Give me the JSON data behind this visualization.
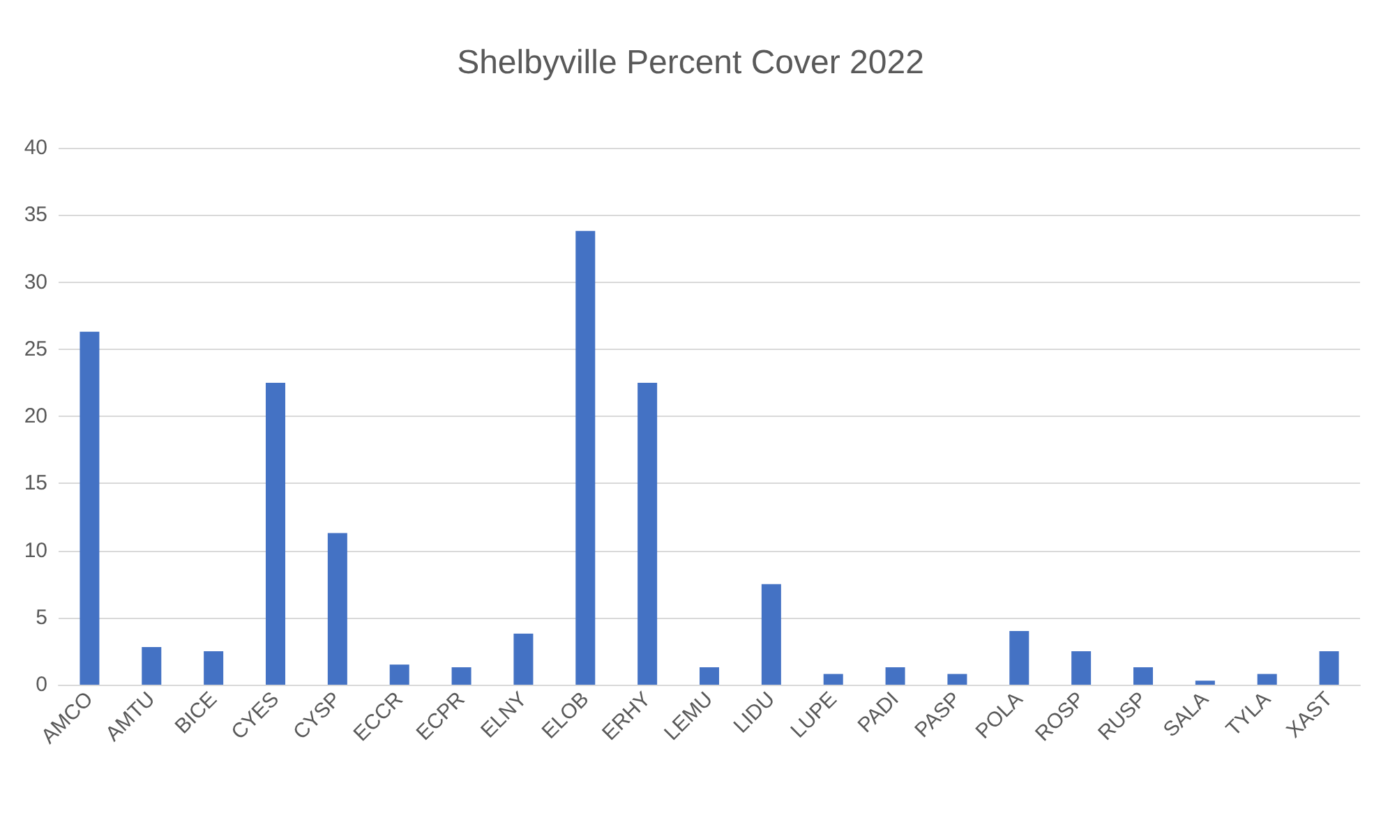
{
  "chart_data": {
    "type": "bar",
    "title": "Shelbyville Percent Cover 2022",
    "categories": [
      "AMCO",
      "AMTU",
      "BICE",
      "CYES",
      "CYSP",
      "ECCR",
      "ECPR",
      "ELNY",
      "ELOB",
      "ERHY",
      "LEMU",
      "LIDU",
      "LUPE",
      "PADI",
      "PASP",
      "POLA",
      "ROSP",
      "RUSP",
      "SALA",
      "TYLA",
      "XAST"
    ],
    "values": [
      26.3,
      2.8,
      2.5,
      22.5,
      11.3,
      1.5,
      1.3,
      3.8,
      33.8,
      22.5,
      1.3,
      7.5,
      0.8,
      1.3,
      0.8,
      4,
      2.5,
      1.3,
      0.3,
      0.8,
      2.5
    ],
    "color": "#4472c4",
    "ylim": [
      0,
      40
    ],
    "yticks": [
      0,
      5,
      10,
      15,
      20,
      25,
      30,
      35,
      40
    ],
    "grid": "y"
  }
}
